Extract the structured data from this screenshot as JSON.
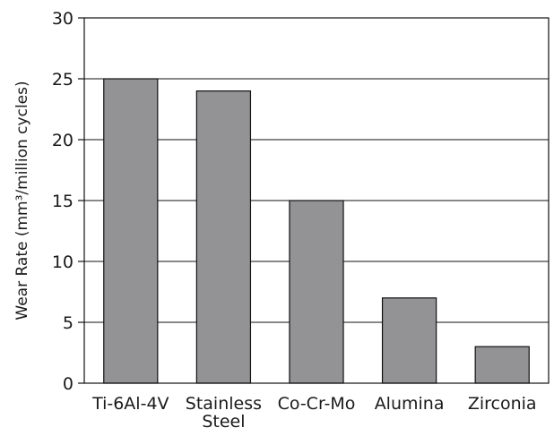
{
  "chart_data": {
    "type": "bar",
    "title": "",
    "xlabel": "",
    "ylabel": "Wear Rate (mm³/million cycles)",
    "categories": [
      "Ti-6Al-4V",
      "Stainless Steel",
      "Co-Cr-Mo",
      "Alumina",
      "Zirconia"
    ],
    "category_lines": [
      [
        "Ti-6Al-4V"
      ],
      [
        "Stainless",
        "Steel"
      ],
      [
        "Co-Cr-Mo"
      ],
      [
        "Alumina"
      ],
      [
        "Zirconia"
      ]
    ],
    "values": [
      25,
      24,
      15,
      7,
      3
    ],
    "ylim": [
      0,
      30
    ],
    "yticks": [
      0,
      5,
      10,
      15,
      20,
      25,
      30
    ],
    "grid": true,
    "legend": "none",
    "bar_color": "#939395"
  }
}
